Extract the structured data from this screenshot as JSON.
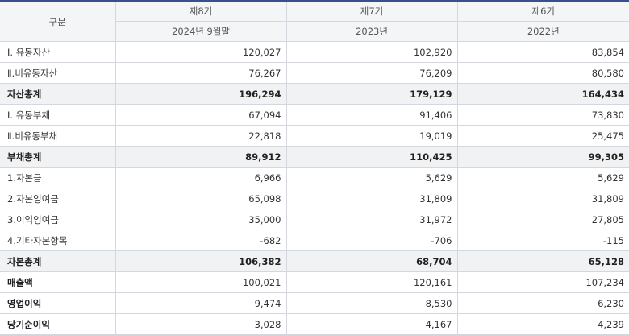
{
  "header": {
    "corner": "구분",
    "periods": [
      "제8기",
      "제7기",
      "제6기"
    ],
    "dates": [
      "2024년 9월말",
      "2023년",
      "2022년"
    ]
  },
  "rows": [
    {
      "label": "Ⅰ. 유동자산",
      "values": [
        "120,027",
        "102,920",
        "83,854"
      ],
      "type": "normal"
    },
    {
      "label": "Ⅱ.비유동자산",
      "values": [
        "76,267",
        "76,209",
        "80,580"
      ],
      "type": "normal"
    },
    {
      "label": "자산총계",
      "values": [
        "196,294",
        "179,129",
        "164,434"
      ],
      "type": "total"
    },
    {
      "label": "Ⅰ. 유동부채",
      "values": [
        "67,094",
        "91,406",
        "73,830"
      ],
      "type": "normal"
    },
    {
      "label": "Ⅱ.비유동부채",
      "values": [
        "22,818",
        "19,019",
        "25,475"
      ],
      "type": "normal"
    },
    {
      "label": "부채총계",
      "values": [
        "89,912",
        "110,425",
        "99,305"
      ],
      "type": "total"
    },
    {
      "label": "1.자본금",
      "values": [
        "6,966",
        "5,629",
        "5,629"
      ],
      "type": "normal"
    },
    {
      "label": "2.자본잉여금",
      "values": [
        "65,098",
        "31,809",
        "31,809"
      ],
      "type": "normal"
    },
    {
      "label": "3.이익잉여금",
      "values": [
        "35,000",
        "31,972",
        "27,805"
      ],
      "type": "normal"
    },
    {
      "label": "4.기타자본항목",
      "values": [
        "-682",
        "-706",
        "-115"
      ],
      "type": "normal"
    },
    {
      "label": "자본총계",
      "values": [
        "106,382",
        "68,704",
        "65,128"
      ],
      "type": "total"
    },
    {
      "label": "매출액",
      "values": [
        "100,021",
        "120,161",
        "107,234"
      ],
      "type": "strong"
    },
    {
      "label": "영업이익",
      "values": [
        "9,474",
        "8,530",
        "6,230"
      ],
      "type": "strong"
    },
    {
      "label": "당기순이익",
      "values": [
        "3,028",
        "4,167",
        "4,239"
      ],
      "type": "strong"
    }
  ],
  "colors": {
    "top_border": "#3b4f8f",
    "header_bg": "#f4f5f7",
    "total_row_bg": "#f1f2f4",
    "grid_line": "#d4d8de"
  }
}
